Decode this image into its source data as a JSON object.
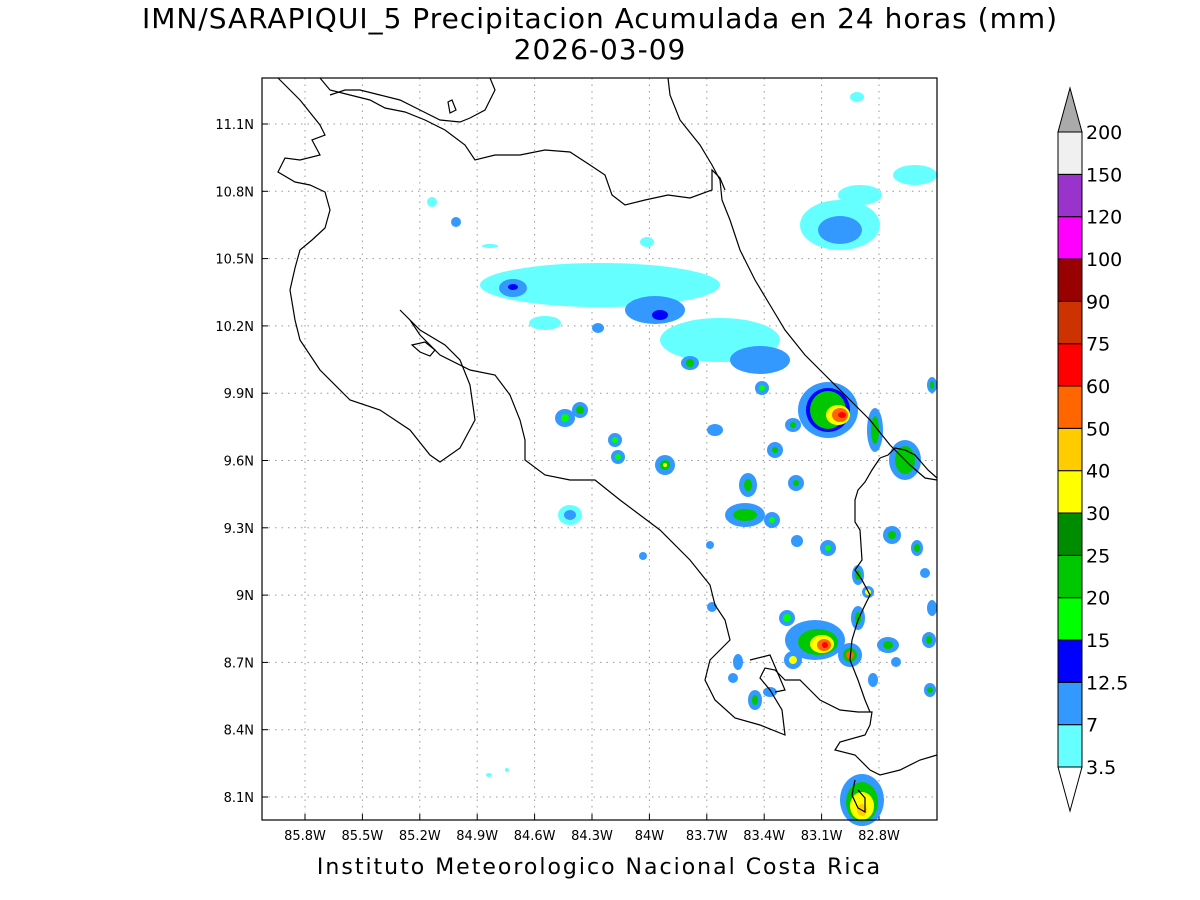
{
  "title": "IMN/SARAPIQUI_5 Precipitacion Acumulada en 24 horas (mm)",
  "date": "2026-03-09",
  "footer": "Instituto Meteorologico Nacional Costa Rica",
  "lat_ticks": [
    "11.1N",
    "10.8N",
    "10.5N",
    "10.2N",
    "9.9N",
    "9.6N",
    "9.3N",
    "9N",
    "8.7N",
    "8.4N",
    "8.1N"
  ],
  "lon_ticks": [
    "85.8W",
    "85.5W",
    "85.2W",
    "84.9W",
    "84.6W",
    "84.3W",
    "84W",
    "83.7W",
    "83.4W",
    "83.1W",
    "82.8W"
  ],
  "colorbar": {
    "levels": [
      {
        "label": "3.5",
        "color": "#66ffff"
      },
      {
        "label": "7",
        "color": "#3399ff"
      },
      {
        "label": "12.5",
        "color": "#0000ff"
      },
      {
        "label": "15",
        "color": "#00ff00"
      },
      {
        "label": "20",
        "color": "#00c800"
      },
      {
        "label": "25",
        "color": "#008c00"
      },
      {
        "label": "30",
        "color": "#ffff00"
      },
      {
        "label": "40",
        "color": "#ffcc00"
      },
      {
        "label": "50",
        "color": "#ff6600"
      },
      {
        "label": "60",
        "color": "#ff0000"
      },
      {
        "label": "75",
        "color": "#cc3300"
      },
      {
        "label": "90",
        "color": "#990000"
      },
      {
        "label": "100",
        "color": "#ff00ff"
      },
      {
        "label": "120",
        "color": "#9933cc"
      },
      {
        "label": "150",
        "color": "#f0f0f0"
      },
      {
        "label": "200",
        "color": "#aaaaaa"
      }
    ]
  }
}
